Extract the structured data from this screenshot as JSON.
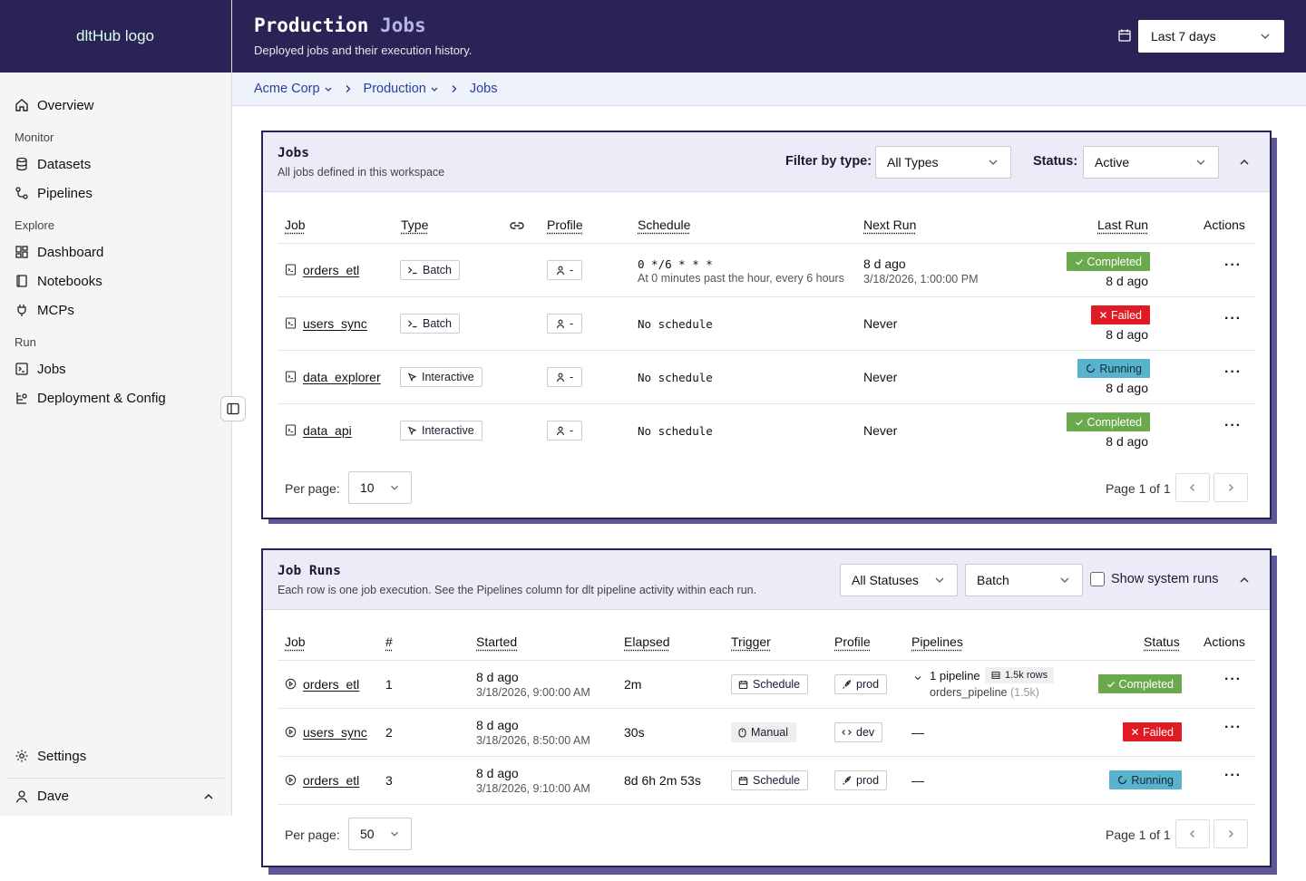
{
  "sidebar": {
    "logo_alt": "dltHub logo",
    "overview": "Overview",
    "groups": {
      "monitor": "Monitor",
      "explore": "Explore",
      "run": "Run"
    },
    "items": {
      "datasets": "Datasets",
      "pipelines": "Pipelines",
      "dashboard": "Dashboard",
      "notebooks": "Notebooks",
      "mcps": "MCPs",
      "jobs": "Jobs",
      "deployment": "Deployment & Config"
    },
    "settings": "Settings",
    "user": "Dave"
  },
  "header": {
    "title_main": "Production",
    "title_accent": "Jobs",
    "subtitle": "Deployed jobs and their execution history.",
    "date_range": "Last 7 days"
  },
  "breadcrumb": [
    "Acme Corp",
    "Production",
    "Jobs"
  ],
  "jobs_card": {
    "title": "Jobs",
    "subtitle": "All jobs defined in this workspace",
    "filter_type_label": "Filter by type:",
    "filter_type_value": "All Types",
    "status_label": "Status:",
    "status_value": "Active",
    "columns": {
      "job": "Job",
      "type": "Type",
      "profile": "Profile",
      "schedule": "Schedule",
      "next_run": "Next Run",
      "last_run": "Last Run",
      "actions": "Actions"
    },
    "rows": [
      {
        "name": "orders_etl",
        "type": "Batch",
        "profile": "-",
        "schedule": "0 */6 * * *",
        "schedule_desc": "At 0 minutes past the hour, every 6 hours",
        "next_run": "8 d ago",
        "next_run_sub": "3/18/2026, 1:00:00 PM",
        "last_status": "Completed",
        "last_run": "8 d ago"
      },
      {
        "name": "users_sync",
        "type": "Batch",
        "profile": "-",
        "schedule": "No schedule",
        "schedule_desc": "",
        "next_run": "Never",
        "next_run_sub": "",
        "last_status": "Failed",
        "last_run": "8 d ago"
      },
      {
        "name": "data_explorer",
        "type": "Interactive",
        "profile": "-",
        "schedule": "No schedule",
        "schedule_desc": "",
        "next_run": "Never",
        "next_run_sub": "",
        "last_status": "Running",
        "last_run": "8 d ago"
      },
      {
        "name": "data_api",
        "type": "Interactive",
        "profile": "-",
        "schedule": "No schedule",
        "schedule_desc": "",
        "next_run": "Never",
        "next_run_sub": "",
        "last_status": "Completed",
        "last_run": "8 d ago"
      }
    ],
    "per_page_label": "Per page:",
    "per_page": "10",
    "page_info": "Page 1 of 1"
  },
  "runs_card": {
    "title": "Job Runs",
    "subtitle": "Each row is one job execution. See the Pipelines column for dlt pipeline activity within each run.",
    "status_filter": "All Statuses",
    "type_filter": "Batch",
    "show_system_label": "Show system runs",
    "columns": {
      "job": "Job",
      "num": "#",
      "started": "Started",
      "elapsed": "Elapsed",
      "trigger": "Trigger",
      "profile": "Profile",
      "pipelines": "Pipelines",
      "status": "Status",
      "actions": "Actions"
    },
    "rows": [
      {
        "name": "orders_etl",
        "num": "1",
        "started": "8 d ago",
        "started_sub": "3/18/2026, 9:00:00 AM",
        "elapsed": "2m",
        "trigger": "Schedule",
        "profile": "prod",
        "pipelines": "1 pipeline",
        "rows_badge": "1.5k rows",
        "pipeline_name": "orders_pipeline",
        "pipeline_count": "(1.5k)",
        "status": "Completed"
      },
      {
        "name": "users_sync",
        "num": "2",
        "started": "8 d ago",
        "started_sub": "3/18/2026, 8:50:00 AM",
        "elapsed": "30s",
        "trigger": "Manual",
        "profile": "dev",
        "pipelines": "—",
        "status": "Failed"
      },
      {
        "name": "orders_etl",
        "num": "3",
        "started": "8 d ago",
        "started_sub": "3/18/2026, 9:10:00 AM",
        "elapsed": "8d 6h 2m 53s",
        "trigger": "Schedule",
        "profile": "prod",
        "pipelines": "—",
        "status": "Running"
      }
    ],
    "per_page_label": "Per page:",
    "per_page": "50",
    "page_info": "Page 1 of 1"
  },
  "actions_glyph": "···"
}
